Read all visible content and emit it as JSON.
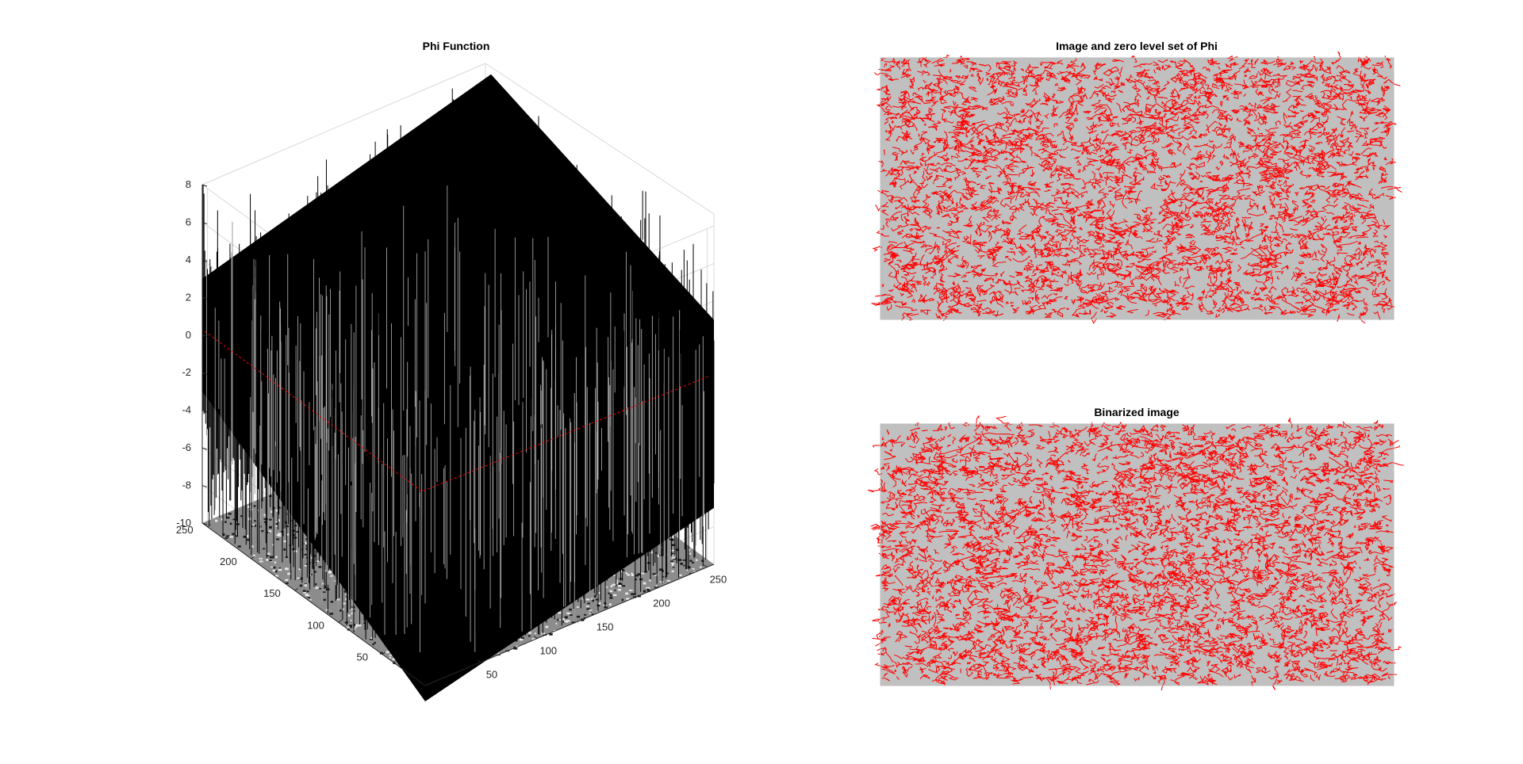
{
  "colors": {
    "background": "#ffffff",
    "surface_mesh": "#000000",
    "contour": "#ff0000",
    "image_gray": "#c0c0c0",
    "floor_dark": "#1a1a1a",
    "grid": "#d9d9d9"
  },
  "chart_data": [
    {
      "type": "surface3d",
      "title": "Phi Function",
      "xlabel": "",
      "ylabel": "",
      "zlabel": "",
      "z_ticks": [
        "8",
        "6",
        "4",
        "2",
        "0",
        "-2",
        "-4",
        "-6",
        "-8",
        "-10"
      ],
      "x_ticks": [
        "50",
        "100",
        "150",
        "200",
        "250"
      ],
      "y_ticks": [
        "50",
        "100",
        "150",
        "200",
        "250"
      ],
      "xlim": [
        1,
        256
      ],
      "ylim": [
        1,
        256
      ],
      "zlim": [
        -10,
        8
      ],
      "zero_level_outline": "red",
      "grid": true,
      "legend": "none"
    },
    {
      "type": "image",
      "title": "Image and zero level set of Phi",
      "background": "gray image",
      "overlay": "red zero level contours",
      "axes_visible": false
    },
    {
      "type": "image",
      "title": "Binarized image",
      "background": "gray image",
      "overlay": "red contours",
      "axes_visible": false
    }
  ]
}
